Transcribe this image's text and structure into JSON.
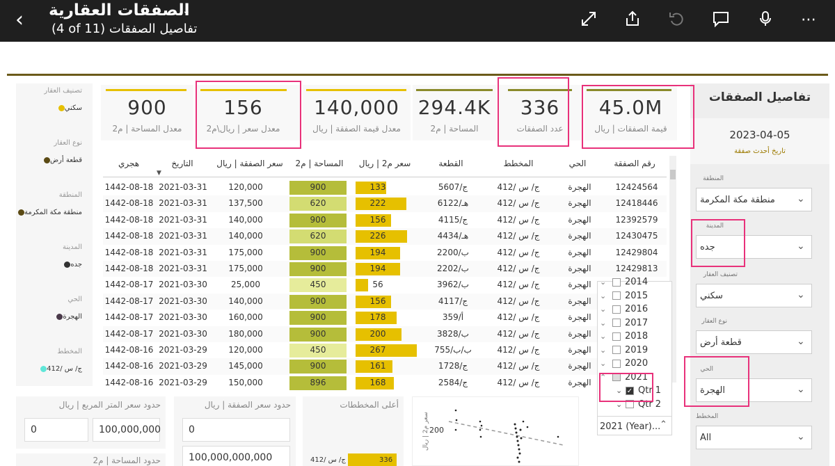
{
  "header": {
    "title": "الصفقات العقارية",
    "subtitle": "(4 of 11) تفاصيل الصفقات",
    "icons": [
      "back-icon",
      "expand-icon",
      "share-icon",
      "undo-icon",
      "comment-icon",
      "microphone-icon",
      "more-icon"
    ]
  },
  "right_panel": {
    "title": "تفاصيل الصفقات",
    "latest_date": "2023-04-05",
    "latest_date_label": "تاريخ أحدث صفقة",
    "slicers": [
      {
        "label": "المنطقة",
        "value": "منطقة مكة المكرمة"
      },
      {
        "label": "المدينة",
        "value": "جده"
      },
      {
        "label": "تصنيف العقار",
        "value": "سكني"
      },
      {
        "label": "نوع العقار",
        "value": "قطعة أرض"
      },
      {
        "label": "الحي",
        "value": "الهجرة"
      },
      {
        "label": "المخطط",
        "value": "All"
      }
    ]
  },
  "left_panel": {
    "items": [
      {
        "label": "تصنيف العقار",
        "value": "سكني",
        "color": "#e6c000"
      },
      {
        "label": "نوع العقار",
        "value": "قطعة أرض",
        "color": "#5b4a14"
      },
      {
        "label": "المنطقة",
        "value": "منطقة مكة المكرمة",
        "color": "#5b4a14"
      },
      {
        "label": "المدينة",
        "value": "جده",
        "color": "#333333"
      },
      {
        "label": "الحي",
        "value": "الهجرة",
        "color": "#4a3a4a"
      },
      {
        "label": "المخطط",
        "value": "ج/ س /412",
        "color": "#5fe6d8"
      }
    ]
  },
  "kpis": [
    {
      "value": "45.0M",
      "label": "قيمة الصفقات | ريال",
      "color": "#8a8a2a"
    },
    {
      "value": "336",
      "label": "عدد الصفقات",
      "color": "#8a8a2a"
    },
    {
      "value": "294.4K",
      "label": "المساحة | م2",
      "color": "#8a8a2a"
    },
    {
      "value": "140,000",
      "label": "معدل قيمة الصفقة | ريال",
      "color": "#e6c000"
    },
    {
      "value": "156",
      "label": "معدل سعر | ريال\\م2",
      "color": "#e6c000"
    },
    {
      "value": "900",
      "label": "معدل المساحة | م2",
      "color": "#e6c000"
    }
  ],
  "table": {
    "columns": [
      "رقم الصفقة",
      "الحي",
      "المخطط",
      "القطعة",
      "سعر م2 | ريال",
      "المساحة | م2",
      "سعر الصفقة | ريال",
      "التاريخ",
      "هجري"
    ],
    "rows": [
      {
        "id": "12424564",
        "district": "الهجرة",
        "plan": "ج/ س /412",
        "plot": "ج/5607",
        "price_m2": 133,
        "area": 900,
        "price": "120,000",
        "date": "2021-03-31",
        "hijri": "1442-08-18"
      },
      {
        "id": "12418446",
        "district": "الهجرة",
        "plan": "ج/ س /412",
        "plot": "هـ/6122",
        "price_m2": 222,
        "area": 620,
        "price": "137,500",
        "date": "2021-03-31",
        "hijri": "1442-08-18"
      },
      {
        "id": "12392579",
        "district": "الهجرة",
        "plan": "ج/ س /412",
        "plot": "ج/4115",
        "price_m2": 156,
        "area": 900,
        "price": "140,000",
        "date": "2021-03-31",
        "hijri": "1442-08-18"
      },
      {
        "id": "12430475",
        "district": "الهجرة",
        "plan": "ج/ س /412",
        "plot": "هـ/4434",
        "price_m2": 226,
        "area": 620,
        "price": "140,000",
        "date": "2021-03-31",
        "hijri": "1442-08-18"
      },
      {
        "id": "12429804",
        "district": "الهجرة",
        "plan": "ج/ س /412",
        "plot": "ب/2200",
        "price_m2": 194,
        "area": 900,
        "price": "175,000",
        "date": "2021-03-31",
        "hijri": "1442-08-18"
      },
      {
        "id": "12429813",
        "district": "الهجرة",
        "plan": "ج/ س /412",
        "plot": "ب/2202",
        "price_m2": 194,
        "area": 900,
        "price": "175,000",
        "date": "2021-03-31",
        "hijri": "1442-08-18"
      },
      {
        "id": "",
        "district": "الهجرة",
        "plan": "ج/ س /412",
        "plot": "ب/3962",
        "price_m2": 56,
        "area": 450,
        "price": "25,000",
        "date": "2021-03-30",
        "hijri": "1442-08-17"
      },
      {
        "id": "",
        "district": "الهجرة",
        "plan": "ج/ س /412",
        "plot": "ج/4117",
        "price_m2": 156,
        "area": 900,
        "price": "140,000",
        "date": "2021-03-30",
        "hijri": "1442-08-17"
      },
      {
        "id": "",
        "district": "الهجرة",
        "plan": "ج/ س /412",
        "plot": "أ/359",
        "price_m2": 178,
        "area": 900,
        "price": "160,000",
        "date": "2021-03-30",
        "hijri": "1442-08-17"
      },
      {
        "id": "",
        "district": "الهجرة",
        "plan": "ج/ س /412",
        "plot": "ب/3828",
        "price_m2": 200,
        "area": 900,
        "price": "180,000",
        "date": "2021-03-30",
        "hijri": "1442-08-17"
      },
      {
        "id": "",
        "district": "الهجرة",
        "plan": "ج/ س /412",
        "plot": "ب/ب/755",
        "price_m2": 267,
        "area": 450,
        "price": "120,000",
        "date": "2021-03-29",
        "hijri": "1442-08-16"
      },
      {
        "id": "",
        "district": "الهجرة",
        "plan": "ج/ س /412",
        "plot": "ج/1728",
        "price_m2": 161,
        "area": 900,
        "price": "145,000",
        "date": "2021-03-29",
        "hijri": "1442-08-16"
      },
      {
        "id": "",
        "district": "الهجرة",
        "plan": "ج/ س /412",
        "plot": "ج/2584",
        "price_m2": 168,
        "area": 896,
        "price": "150,000",
        "date": "2021-03-29",
        "hijri": "1442-08-16"
      }
    ]
  },
  "date_popup": {
    "years": [
      "2014",
      "2015",
      "2016",
      "2017",
      "2018",
      "2019",
      "2020",
      "2021"
    ],
    "quarters": [
      {
        "label": "Qtr 1",
        "checked": true
      },
      {
        "label": "Qtr 2",
        "checked": false
      }
    ],
    "footer_value": "2021 (Year)..."
  },
  "bottom": {
    "sqm_price_title": "حدود سعر المتر المربع | ريال",
    "sqm_min": "0",
    "sqm_max": "100,000,000",
    "deal_price_title": "حدود سعر الصفقة | ريال",
    "deal_min": "0",
    "deal_max": "100,000,000,000",
    "area_title": "حدود المساحة | م2",
    "top_plans_title": "أعلى المخططات",
    "top_plan_label": "ج/ س /412",
    "top_plan_value": "336",
    "scatter_ylabel": "سعر م2 | ريال",
    "scatter_tick": "200"
  },
  "colors": {
    "accent_gold": "#e6c000",
    "dark_olive": "#8a8a2a",
    "highlight": "#e8317a"
  }
}
